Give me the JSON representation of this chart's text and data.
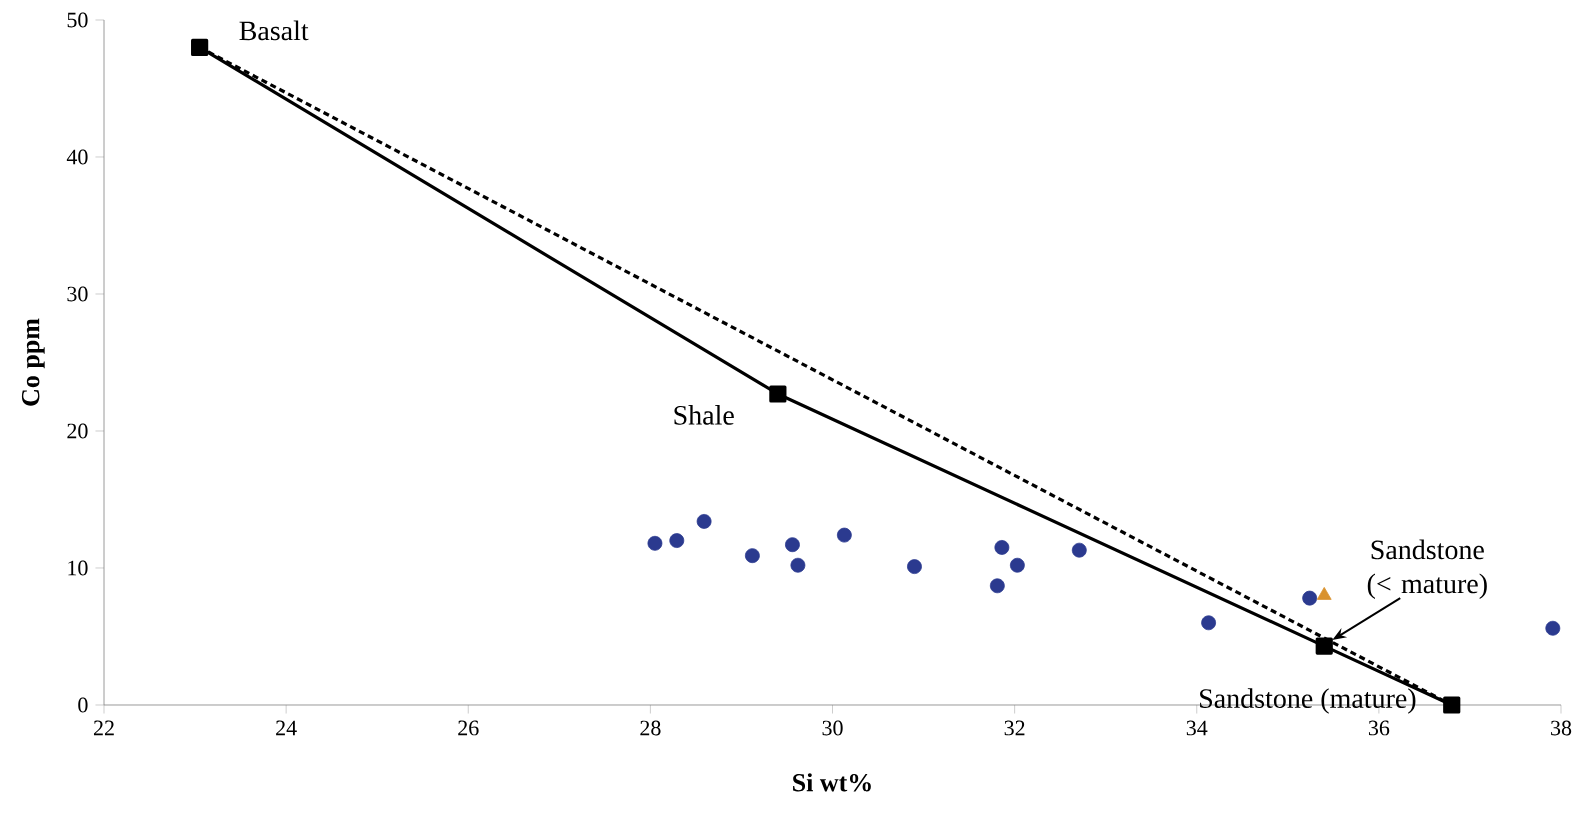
{
  "chart_data": {
    "type": "scatter",
    "xlabel": "Si wt%",
    "ylabel": "Co ppm",
    "xlim": [
      22,
      38
    ],
    "ylim": [
      0,
      50
    ],
    "xticks": [
      22,
      24,
      26,
      28,
      30,
      32,
      34,
      36,
      38
    ],
    "yticks": [
      0,
      10,
      20,
      30,
      40,
      50
    ],
    "grid": false,
    "series": [
      {
        "type": "line",
        "color": "#000000",
        "marker": "square",
        "line_style": "solid",
        "x": [
          23.05,
          29.4,
          35.4,
          36.8
        ],
        "values": [
          48,
          22.7,
          4.3,
          0
        ]
      },
      {
        "type": "line",
        "color": "#000000",
        "marker": "none",
        "line_style": "dashed",
        "x": [
          23.05,
          36.8
        ],
        "values": [
          48,
          0
        ]
      },
      {
        "color": "#2b3a8f",
        "marker": "circle",
        "x": [
          28.05,
          28.29,
          28.59,
          29.12,
          29.56,
          29.62,
          30.13,
          30.9,
          31.86,
          31.81,
          32.03,
          32.71,
          34.13,
          35.24,
          37.91
        ],
        "values": [
          11.8,
          12.0,
          13.4,
          10.9,
          11.7,
          10.2,
          12.4,
          10.1,
          11.5,
          8.7,
          10.2,
          11.3,
          6.0,
          7.8,
          5.6
        ]
      },
      {
        "color": "#d9922e",
        "marker": "triangle",
        "x": [
          35.4
        ],
        "values": [
          8.0
        ]
      }
    ],
    "annotations": [
      {
        "text": "Basalt",
        "x": 23.05,
        "y": 48
      },
      {
        "text": "Shale",
        "x": 29.4,
        "y": 22.7
      },
      {
        "text": "Sandstone (< mature)",
        "x": 35.4,
        "y": 4.3
      },
      {
        "text": "Sandstone (mature)",
        "x": 36.8,
        "y": 0
      }
    ]
  }
}
